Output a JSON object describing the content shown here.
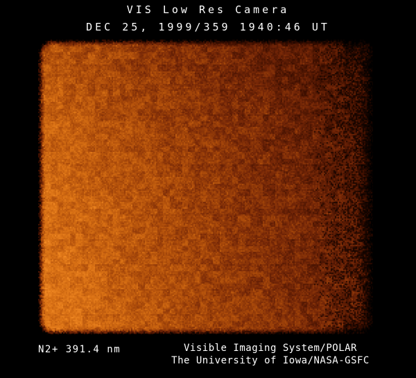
{
  "header": {
    "line1": "VIS Low Res Camera",
    "line2": "DEC 25, 1999/359 1940:46 UT"
  },
  "footer": {
    "filter_label": "N2+ 391.4 nm",
    "credit_line1": "Visible Imaging System/POLAR",
    "credit_line2": "The University of Iowa/NASA-GSFC"
  },
  "colors": {
    "background": "#000000",
    "text": "#ffffff",
    "colormap": [
      "#000000",
      "#3c0e00",
      "#742607",
      "#aa4a0a",
      "#d87014",
      "#f89028"
    ]
  }
}
